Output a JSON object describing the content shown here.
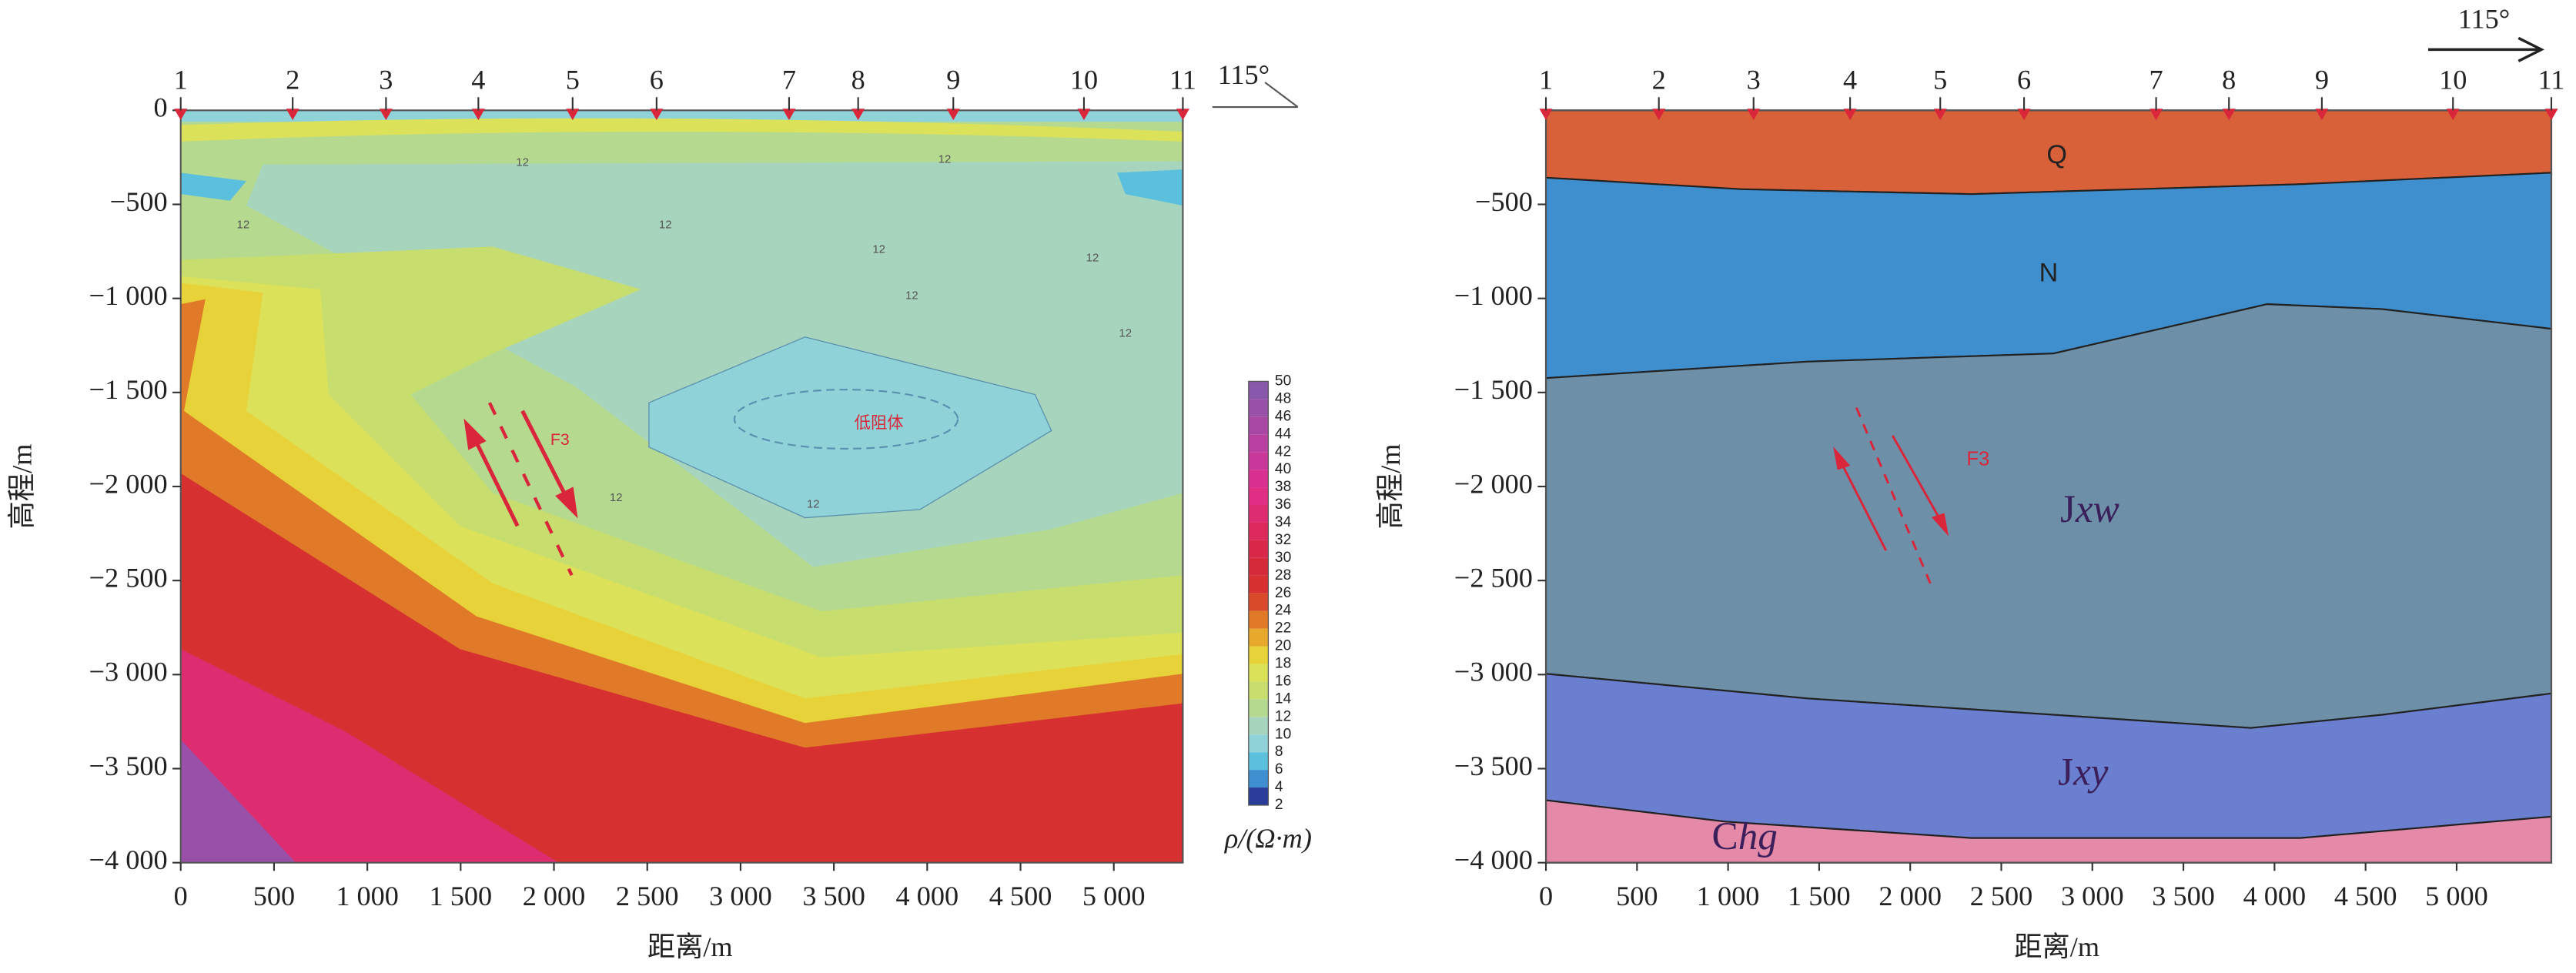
{
  "chart_data": [
    {
      "type": "contour",
      "xlabel": "距离/m",
      "ylabel": "高程/m",
      "azimuth": "115°",
      "xlim": [
        0,
        5370
      ],
      "ylim": [
        -4000,
        0
      ],
      "xticks": [
        0,
        500,
        {
          "value": 1000,
          "label": "1 000"
        },
        {
          "value": 1500,
          "label": "1 500"
        },
        {
          "value": 2000,
          "label": "2 000"
        },
        {
          "value": 2500,
          "label": "2 500"
        },
        {
          "value": 3000,
          "label": "3 000"
        },
        {
          "value": 3500,
          "label": "3 500"
        },
        {
          "value": 4000,
          "label": "4 000"
        },
        {
          "value": 4500,
          "label": "4 500"
        },
        {
          "value": 5000,
          "label": "5 000"
        }
      ],
      "yticks": [
        0,
        {
          "value": -500,
          "label": "−500"
        },
        {
          "value": -1000,
          "label": "−1 000"
        },
        {
          "value": -1500,
          "label": "−1 500"
        },
        {
          "value": -2000,
          "label": "−2 000"
        },
        {
          "value": -2500,
          "label": "−2 500"
        },
        {
          "value": -3000,
          "label": "−3 000"
        },
        {
          "value": -3500,
          "label": "−3 500"
        },
        {
          "value": -4000,
          "label": "−4 000"
        }
      ],
      "stations": {
        "labels": [
          "1",
          "2",
          "3",
          "4",
          "5",
          "6",
          "7",
          "8",
          "9",
          "10",
          "11"
        ],
        "x": [
          0,
          600,
          1100,
          1595,
          2100,
          2550,
          3260,
          3630,
          4140,
          4840,
          5370
        ],
        "color": "#d9263a"
      },
      "colorbar": {
        "title": "ρ/(Ω·m)",
        "ticks": [
          2,
          4,
          6,
          8,
          10,
          12,
          14,
          16,
          18,
          20,
          22,
          24,
          26,
          28,
          30,
          32,
          34,
          36,
          38,
          40,
          42,
          44,
          46,
          48,
          50
        ],
        "colors": [
          "#2a3d9a",
          "#3f8fd0",
          "#5bc0de",
          "#8fd3d8",
          "#a7d4bd",
          "#b5d98f",
          "#c7dd6e",
          "#dbe25a",
          "#e8d23a",
          "#e8a82c",
          "#e07a28",
          "#d84a2a",
          "#d63030",
          "#d42a3a",
          "#d8284a",
          "#dc2a5c",
          "#de2c70",
          "#e02e84",
          "#d83090",
          "#c8389a",
          "#b840a0",
          "#a848a4",
          "#9850a8",
          "#8858ac"
        ]
      },
      "contour_label": "12",
      "low_body": "低阻体",
      "fault": "F3"
    },
    {
      "type": "section",
      "xlabel": "距离/m",
      "ylabel": "高程/m",
      "azimuth": "115°",
      "xlim": [
        0,
        5520
      ],
      "ylim": [
        -4000,
        0
      ],
      "xticks": [
        0,
        500,
        {
          "value": 1000,
          "label": "1 000"
        },
        {
          "value": 1500,
          "label": "1 500"
        },
        {
          "value": 2000,
          "label": "2 000"
        },
        {
          "value": 2500,
          "label": "2 500"
        },
        {
          "value": 3000,
          "label": "3 000"
        },
        {
          "value": 3500,
          "label": "3 500"
        },
        {
          "value": 4000,
          "label": "4 000"
        },
        {
          "value": 4500,
          "label": "4 500"
        },
        {
          "value": 5000,
          "label": "5 000"
        }
      ],
      "yticks": [
        {
          "value": -500,
          "label": "−500"
        },
        {
          "value": -1000,
          "label": "−1 000"
        },
        {
          "value": -1500,
          "label": "−1 500"
        },
        {
          "value": -2000,
          "label": "−2 000"
        },
        {
          "value": -2500,
          "label": "−2 500"
        },
        {
          "value": -3000,
          "label": "−3 000"
        },
        {
          "value": -3500,
          "label": "−3 500"
        },
        {
          "value": -4000,
          "label": "−4 000"
        }
      ],
      "stations": {
        "labels": [
          "1",
          "2",
          "3",
          "4",
          "5",
          "6",
          "7",
          "8",
          "9",
          "10",
          "11"
        ],
        "x": [
          0,
          620,
          1140,
          1670,
          2165,
          2625,
          3350,
          3750,
          4260,
          4980,
          5520
        ],
        "color": "#d9263a"
      },
      "layers": {
        "Q": "Q",
        "N": "N",
        "Jxw": {
          "roman": "J",
          "italic": "xw"
        },
        "Jxy": {
          "roman": "J",
          "italic": "xy"
        },
        "Chg": {
          "roman": "C",
          "italic": "hg"
        }
      },
      "fault": "F3"
    }
  ]
}
